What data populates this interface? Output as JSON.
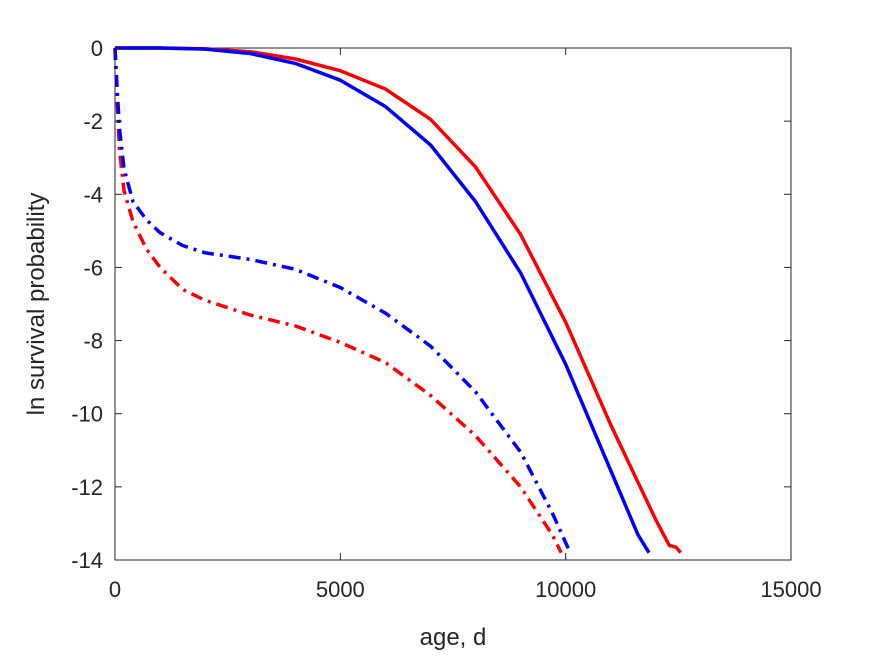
{
  "chart_data": {
    "type": "line",
    "xlabel": "age, d",
    "ylabel": "ln survival probability",
    "xlim": [
      0,
      15000
    ],
    "ylim": [
      -14,
      0
    ],
    "xticks": [
      0,
      5000,
      10000,
      15000
    ],
    "yticks": [
      0,
      -2,
      -4,
      -6,
      -8,
      -10,
      -12,
      -14
    ],
    "grid": false,
    "legend": "none",
    "series": [
      {
        "color": "#ff0000",
        "style": "solid",
        "points": [
          [
            0,
            0
          ],
          [
            1000,
            0
          ],
          [
            2000,
            -0.02
          ],
          [
            3000,
            -0.1
          ],
          [
            4000,
            -0.3
          ],
          [
            5000,
            -0.62
          ],
          [
            6000,
            -1.12
          ],
          [
            7000,
            -1.95
          ],
          [
            8000,
            -3.25
          ],
          [
            9000,
            -5.1
          ],
          [
            10000,
            -7.5
          ],
          [
            11000,
            -10.3
          ],
          [
            12000,
            -12.9
          ],
          [
            12300,
            -13.6
          ],
          [
            12450,
            -13.65
          ],
          [
            12550,
            -13.8
          ]
        ]
      },
      {
        "color": "#0000ff",
        "style": "solid",
        "points": [
          [
            0,
            0
          ],
          [
            1000,
            0
          ],
          [
            2000,
            -0.03
          ],
          [
            3000,
            -0.15
          ],
          [
            4000,
            -0.42
          ],
          [
            5000,
            -0.88
          ],
          [
            6000,
            -1.6
          ],
          [
            7000,
            -2.65
          ],
          [
            8000,
            -4.2
          ],
          [
            9000,
            -6.15
          ],
          [
            10000,
            -8.65
          ],
          [
            11000,
            -11.55
          ],
          [
            11600,
            -13.3
          ],
          [
            11850,
            -13.8
          ]
        ]
      },
      {
        "color": "#ff0000",
        "style": "dashdot",
        "points": [
          [
            0,
            0
          ],
          [
            50,
            -1.5
          ],
          [
            100,
            -2.8
          ],
          [
            200,
            -3.9
          ],
          [
            400,
            -4.75
          ],
          [
            700,
            -5.5
          ],
          [
            1000,
            -6.0
          ],
          [
            1500,
            -6.6
          ],
          [
            2000,
            -6.9
          ],
          [
            3000,
            -7.3
          ],
          [
            4000,
            -7.6
          ],
          [
            5000,
            -8.05
          ],
          [
            6000,
            -8.6
          ],
          [
            7000,
            -9.5
          ],
          [
            8000,
            -10.6
          ],
          [
            9000,
            -12.0
          ],
          [
            9700,
            -13.3
          ],
          [
            9900,
            -13.8
          ]
        ]
      },
      {
        "color": "#0000ff",
        "style": "dashdot",
        "points": [
          [
            0,
            0
          ],
          [
            50,
            -1.2
          ],
          [
            100,
            -2.2
          ],
          [
            200,
            -3.3
          ],
          [
            400,
            -4.2
          ],
          [
            700,
            -4.7
          ],
          [
            1000,
            -5.05
          ],
          [
            1500,
            -5.4
          ],
          [
            2000,
            -5.6
          ],
          [
            3000,
            -5.78
          ],
          [
            4000,
            -6.05
          ],
          [
            5000,
            -6.55
          ],
          [
            6000,
            -7.25
          ],
          [
            7000,
            -8.15
          ],
          [
            8000,
            -9.4
          ],
          [
            9000,
            -11.05
          ],
          [
            9700,
            -12.7
          ],
          [
            10100,
            -13.8
          ]
        ]
      }
    ]
  }
}
